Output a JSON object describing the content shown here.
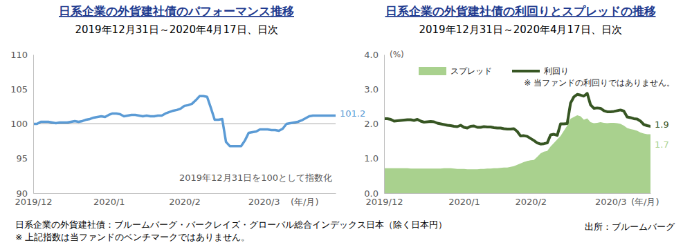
{
  "chart_data": [
    {
      "type": "line",
      "title": "日系企業の外貨建社債のパフォーマンス推移",
      "subtitle": "2019年12月31日～2020年4月17日、日次",
      "x_label": "(年/月)",
      "categories": [
        "2019/12",
        null,
        null,
        null,
        null,
        null,
        null,
        null,
        null,
        null,
        null,
        null,
        null,
        null,
        null,
        null,
        null,
        null,
        null,
        null,
        "2020/1",
        null,
        null,
        null,
        null,
        null,
        null,
        null,
        null,
        null,
        null,
        null,
        null,
        null,
        null,
        null,
        null,
        null,
        null,
        null,
        "2020/2",
        null,
        null,
        null,
        null,
        null,
        null,
        null,
        null,
        null,
        null,
        null,
        null,
        null,
        null,
        null,
        null,
        null,
        null,
        null,
        null,
        "2020/3",
        null,
        null,
        null,
        null,
        null,
        null,
        null,
        null,
        null,
        null,
        null,
        null,
        null,
        null,
        null,
        null,
        null,
        null,
        null
      ],
      "values": [
        100.0,
        100.0,
        100.3,
        100.3,
        100.3,
        100.2,
        100.1,
        100.2,
        100.2,
        100.2,
        100.3,
        100.4,
        100.3,
        100.4,
        100.6,
        100.7,
        100.9,
        101.0,
        101.1,
        101.0,
        101.3,
        101.5,
        101.5,
        101.4,
        101.1,
        101.2,
        101.3,
        101.3,
        101.2,
        101.1,
        101.2,
        101.1,
        101.1,
        101.2,
        101.2,
        101.5,
        101.7,
        101.9,
        102.0,
        102.2,
        102.6,
        102.7,
        102.9,
        103.4,
        104.0,
        104.0,
        103.9,
        102.3,
        100.6,
        100.6,
        100.7,
        97.4,
        96.8,
        96.8,
        96.8,
        96.8,
        97.6,
        98.7,
        98.8,
        98.9,
        99.2,
        99.2,
        99.2,
        99.1,
        99.1,
        99.0,
        99.3,
        100.0,
        100.1,
        100.2,
        100.3,
        100.5,
        100.8,
        101.1,
        101.2,
        101.2,
        101.2,
        101.2,
        101.2,
        101.2,
        101.2
      ],
      "value_labels": [
        null,
        null,
        null,
        null,
        null,
        null,
        null,
        null,
        null,
        null,
        null,
        null,
        null,
        null,
        null,
        null,
        null,
        null,
        null,
        null,
        null,
        null,
        null,
        null,
        null,
        null,
        null,
        null,
        null,
        null,
        null,
        null,
        null,
        null,
        null,
        null,
        null,
        null,
        null,
        null,
        null,
        null,
        null,
        null,
        null,
        null,
        null,
        null,
        null,
        null,
        null,
        null,
        null,
        null,
        null,
        null,
        null,
        null,
        null,
        null,
        null,
        null,
        null,
        null,
        null,
        null,
        null,
        null,
        null,
        null,
        null,
        null,
        null,
        null,
        null,
        null,
        null,
        null,
        null,
        null,
        "101.2"
      ],
      "color": "#5b9bd5",
      "baseline": 100,
      "annotations": [
        "2019年12月31日を100として指数化"
      ],
      "ylim": [
        90,
        110
      ],
      "yticks": [
        90,
        95,
        100,
        105,
        110
      ]
    },
    {
      "type": "line",
      "title": "日系企業の外貨建社債の利回りとスプレッドの推移",
      "subtitle": "2019年12月31日～2020年4月17日、日次",
      "x_label": "(年/月)",
      "y_label": "(%)",
      "categories": [
        "2019/12",
        null,
        null,
        null,
        null,
        null,
        null,
        null,
        null,
        null,
        null,
        null,
        null,
        null,
        null,
        null,
        null,
        null,
        null,
        null,
        null,
        null,
        null,
        null,
        "2020/1",
        null,
        null,
        null,
        null,
        null,
        null,
        null,
        null,
        null,
        null,
        null,
        null,
        null,
        null,
        null,
        null,
        null,
        null,
        null,
        "2020/2",
        null,
        null,
        null,
        null,
        null,
        null,
        null,
        null,
        null,
        null,
        null,
        null,
        null,
        null,
        null,
        null,
        null,
        null,
        null,
        null,
        null,
        null,
        null,
        "2020/3",
        null,
        null,
        null,
        null,
        null,
        null,
        null,
        null,
        null,
        null,
        null,
        null
      ],
      "series": [
        {
          "name": "スプレッド",
          "type": "area",
          "color": "#a9d18e",
          "values": [
            0.72,
            0.72,
            0.72,
            0.72,
            0.72,
            0.72,
            0.72,
            0.72,
            0.71,
            0.71,
            0.71,
            0.71,
            0.71,
            0.71,
            0.71,
            0.71,
            0.71,
            0.71,
            0.72,
            0.72,
            0.72,
            0.71,
            0.7,
            0.7,
            0.7,
            0.69,
            0.69,
            0.69,
            0.69,
            0.7,
            0.7,
            0.71,
            0.71,
            0.72,
            0.72,
            0.73,
            0.74,
            0.74,
            0.76,
            0.78,
            0.82,
            0.86,
            0.9,
            0.93,
            0.95,
            0.96,
            1.05,
            1.15,
            1.2,
            1.22,
            1.35,
            1.45,
            1.55,
            1.65,
            1.8,
            1.95,
            2.15,
            2.2,
            2.25,
            2.22,
            2.12,
            2.16,
            2.05,
            2.02,
            2.03,
            2.05,
            2.03,
            2.02,
            2.03,
            2.03,
            2.02,
            2.0,
            1.95,
            1.88,
            1.85,
            1.83,
            1.8,
            1.75,
            1.72,
            1.7,
            1.7
          ],
          "value_labels": [
            null,
            null,
            null,
            null,
            null,
            null,
            null,
            null,
            null,
            null,
            null,
            null,
            null,
            null,
            null,
            null,
            null,
            null,
            null,
            null,
            null,
            null,
            null,
            null,
            null,
            null,
            null,
            null,
            null,
            null,
            null,
            null,
            null,
            null,
            null,
            null,
            null,
            null,
            null,
            null,
            null,
            null,
            null,
            null,
            null,
            null,
            null,
            null,
            null,
            null,
            null,
            null,
            null,
            null,
            null,
            null,
            null,
            null,
            null,
            null,
            null,
            null,
            null,
            null,
            null,
            null,
            null,
            null,
            null,
            null,
            null,
            null,
            null,
            null,
            null,
            null,
            null,
            null,
            null,
            null,
            "1.7"
          ]
        },
        {
          "name": "利回り",
          "type": "line",
          "color": "#375623",
          "values": [
            2.15,
            2.15,
            2.13,
            2.08,
            2.09,
            2.1,
            2.11,
            2.12,
            2.12,
            2.1,
            2.13,
            2.08,
            2.05,
            2.06,
            2.07,
            2.06,
            2.02,
            2.0,
            1.98,
            1.96,
            1.95,
            1.93,
            1.92,
            1.96,
            1.9,
            1.88,
            1.93,
            1.94,
            1.9,
            1.9,
            1.92,
            1.91,
            1.91,
            1.89,
            1.88,
            1.88,
            1.86,
            1.85,
            1.85,
            1.86,
            1.78,
            1.65,
            1.66,
            1.64,
            1.58,
            1.52,
            1.45,
            1.42,
            1.43,
            1.45,
            1.68,
            1.7,
            1.67,
            2.0,
            2.0,
            2.01,
            2.6,
            2.78,
            2.85,
            2.83,
            2.8,
            2.88,
            2.55,
            2.45,
            2.46,
            2.45,
            2.38,
            2.35,
            2.35,
            2.36,
            2.38,
            2.4,
            2.37,
            2.2,
            2.18,
            2.15,
            2.14,
            2.08,
            1.98,
            1.95,
            1.93
          ],
          "value_labels": [
            null,
            null,
            null,
            null,
            null,
            null,
            null,
            null,
            null,
            null,
            null,
            null,
            null,
            null,
            null,
            null,
            null,
            null,
            null,
            null,
            null,
            null,
            null,
            null,
            null,
            null,
            null,
            null,
            null,
            null,
            null,
            null,
            null,
            null,
            null,
            null,
            null,
            null,
            null,
            null,
            null,
            null,
            null,
            null,
            null,
            null,
            null,
            null,
            null,
            null,
            null,
            null,
            null,
            null,
            null,
            null,
            null,
            null,
            null,
            null,
            null,
            null,
            null,
            null,
            null,
            null,
            null,
            null,
            null,
            null,
            null,
            null,
            null,
            null,
            null,
            null,
            null,
            null,
            null,
            null,
            "1.9"
          ]
        }
      ],
      "legend": "top",
      "annotations": [
        "※ 当ファンドの利回りではありません。"
      ],
      "ylim": [
        0,
        4
      ],
      "yticks": [
        {
          "value": 0,
          "label": "0.0"
        },
        {
          "value": 1,
          "label": "1.0"
        },
        {
          "value": 2,
          "label": "2.0"
        },
        {
          "value": 3,
          "label": "3.0"
        },
        {
          "value": 4,
          "label": "4.0"
        }
      ]
    }
  ],
  "notes": [
    "日系企業の外貨建社債：ブルームバーグ・バークレイズ・グローバル総合インデックス日本（除く日本円）",
    "※ 上記指数は当ファンドのベンチマークではありません。"
  ],
  "source": "出所：ブルームバーグ"
}
